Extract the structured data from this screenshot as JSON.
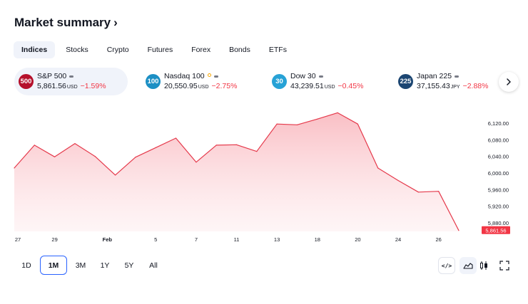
{
  "header": {
    "title": "Market summary",
    "chevron": "›"
  },
  "tabs": [
    {
      "label": "Indices",
      "active": true
    },
    {
      "label": "Stocks"
    },
    {
      "label": "Crypto"
    },
    {
      "label": "Futures"
    },
    {
      "label": "Forex"
    },
    {
      "label": "Bonds"
    },
    {
      "label": "ETFs"
    }
  ],
  "cards": [
    {
      "badge": "500",
      "badge_color": "#b5102b",
      "name": "S&P 500",
      "value": "5,861.56",
      "currency": "USD",
      "change": "−1.59%",
      "active": true,
      "status_icon": "market-closed-icon"
    },
    {
      "badge": "100",
      "badge_color": "#1c8fc4",
      "name": "Nasdaq 100",
      "value": "20,550.95",
      "currency": "USD",
      "change": "−2.75%",
      "status_icon": "market-closed-icon"
    },
    {
      "badge": "30",
      "badge_color": "#27a2d6",
      "name": "Dow 30",
      "value": "43,239.51",
      "currency": "USD",
      "change": "−0.45%",
      "status_icon": "market-closed-icon"
    },
    {
      "badge": "225",
      "badge_color": "#1c4672",
      "name": "Japan 225",
      "value": "37,155.43",
      "currency": "JPY",
      "change": "−2.88%",
      "status_icon": "market-closed-icon"
    }
  ],
  "colors": {
    "line": "#e5394b",
    "fill": "#fbd2d6",
    "negative": "#f23645",
    "accent": "#2962ff"
  },
  "chart_data": {
    "type": "area",
    "x": [
      "Jan 27",
      "Jan 28",
      "Jan 29",
      "Jan 30",
      "Jan 31",
      "Feb 3",
      "Feb 4",
      "Feb 5",
      "Feb 6",
      "Feb 7",
      "Feb 10",
      "Feb 11",
      "Feb 12",
      "Feb 13",
      "Feb 14",
      "Feb 18",
      "Feb 19",
      "Feb 20",
      "Feb 21",
      "Feb 24",
      "Feb 25",
      "Feb 26",
      "Feb 27"
    ],
    "values": [
      6012,
      6067,
      6039,
      6071,
      6040,
      5995,
      6038,
      6061,
      6084,
      6026,
      6067,
      6068,
      6052,
      6118,
      6116,
      6130,
      6145,
      6118,
      6012,
      5982,
      5954,
      5956,
      5861.56
    ],
    "x_tick_labels": [
      "27",
      "29",
      "Feb",
      "5",
      "7",
      "11",
      "13",
      "18",
      "20",
      "24",
      "26"
    ],
    "y_tick_labels": [
      "6,120.00",
      "6,080.00",
      "6,040.00",
      "6,000.00",
      "5,960.00",
      "5,920.00",
      "5,880.00"
    ],
    "y_ticks": [
      6120,
      6080,
      6040,
      6000,
      5960,
      5920,
      5880
    ],
    "ylim": [
      5855,
      6165
    ],
    "last_value_label": "5,861.56",
    "grid": false
  },
  "ranges": [
    {
      "label": "1D"
    },
    {
      "label": "1M",
      "active": true
    },
    {
      "label": "3M"
    },
    {
      "label": "1Y"
    },
    {
      "label": "5Y"
    },
    {
      "label": "All"
    }
  ],
  "tools": [
    {
      "name": "embed-code-icon",
      "glyph": "</>"
    },
    {
      "name": "area-chart-icon"
    },
    {
      "name": "candlestick-chart-icon"
    },
    {
      "name": "fullscreen-icon"
    }
  ]
}
